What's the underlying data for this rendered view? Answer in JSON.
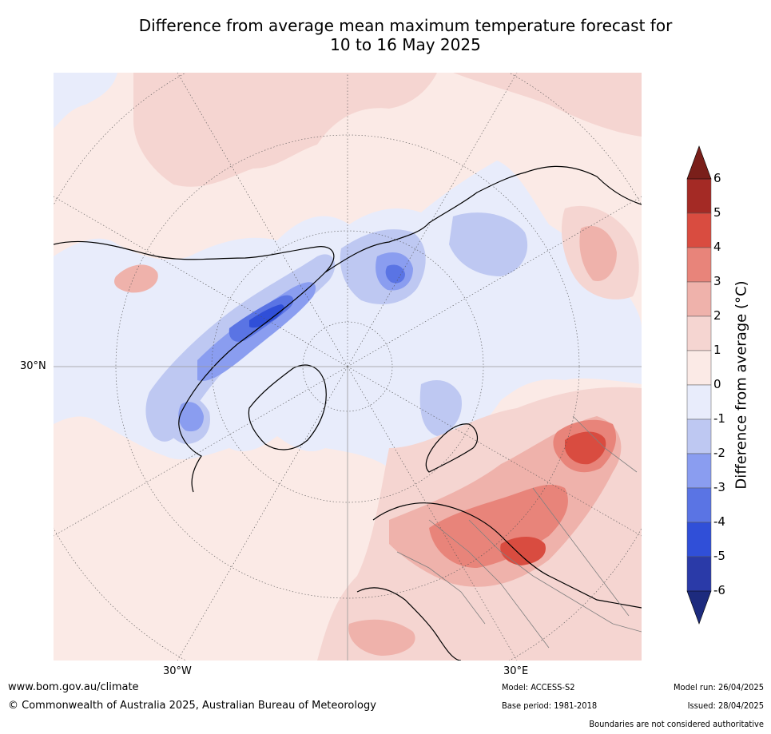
{
  "title": {
    "line1": "Difference from average mean maximum temperature forecast for",
    "line2": "10 to 16 May 2025"
  },
  "map": {
    "projection": "north-polar-stereographic",
    "lat_labels": [
      "30°N"
    ],
    "lon_labels": [
      "30°W",
      "30°E"
    ],
    "colors": {
      "neutral_warm": "#fbeae6",
      "neutral_cool": "#e8ecfb",
      "coast": "#000000",
      "borders": "#808080"
    }
  },
  "colorbar": {
    "title": "Difference from average (°C)",
    "ticks": [
      "6",
      "5",
      "4",
      "3",
      "2",
      "1",
      "0",
      "-1",
      "-2",
      "-3",
      "-4",
      "-5",
      "-6"
    ],
    "bins": [
      {
        "range": "5 to 6",
        "color": "#a42a25"
      },
      {
        "range": "4 to 5",
        "color": "#d94c40"
      },
      {
        "range": "3 to 4",
        "color": "#e8847a"
      },
      {
        "range": "2 to 3",
        "color": "#efb2ab"
      },
      {
        "range": "1 to 2",
        "color": "#f5d5d1"
      },
      {
        "range": "0 to 1",
        "color": "#fbeae6"
      },
      {
        "range": "-1 to 0",
        "color": "#e8ecfb"
      },
      {
        "range": "-2 to -1",
        "color": "#bec8f2"
      },
      {
        "range": "-3 to -2",
        "color": "#8a9df0"
      },
      {
        "range": "-4 to -3",
        "color": "#5a74e4"
      },
      {
        "range": "-5 to -4",
        "color": "#304fd8"
      },
      {
        "range": "-6 to -5",
        "color": "#2a3aa8"
      }
    ],
    "over_color": "#7a1f1a",
    "under_color": "#1d2b7e"
  },
  "footer": {
    "website": "www.bom.gov.au/climate",
    "copyright": "© Commonwealth of Australia 2025, Australian Bureau of Meteorology",
    "model": "Model: ACCESS-S2",
    "base_period": "Base period: 1981-2018",
    "model_run": "Model run: 26/04/2025",
    "issued": "Issued: 28/04/2025",
    "disclaimer": "Boundaries are not considered authoritative"
  }
}
